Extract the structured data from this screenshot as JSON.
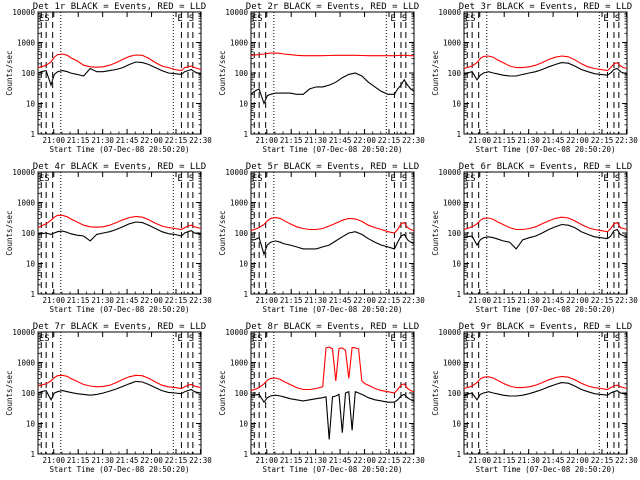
{
  "figure": {
    "background": "#ffffff",
    "events_color": "#000000",
    "lld_color": "#ff0000",
    "xtick_labels": [
      "21:00",
      "21:15",
      "21:30",
      "21:45",
      "22:00",
      "22:15",
      "22:30"
    ],
    "ytick_labels": [
      "1",
      "10",
      "100",
      "1000",
      "10000"
    ],
    "ylabel": "Counts/sec",
    "xlabel": "Start Time (07-Dec-08 20:50:20)",
    "flag_labels": [
      "ES",
      "E",
      "S"
    ]
  },
  "chart_data": [
    {
      "type": "line",
      "title": "Det 1r BLACK = Events, RED = LLD",
      "xlabel": "Start Time (07-Dec-08 20:50:20)",
      "ylabel": "Counts/sec",
      "xlim_minutes_after_2050_20": [
        0,
        100
      ],
      "ylim": [
        1,
        10000
      ],
      "yscale": "log",
      "x": [
        0,
        2,
        5,
        8,
        10,
        12,
        15,
        18,
        20,
        24,
        28,
        32,
        36,
        40,
        44,
        48,
        52,
        56,
        60,
        64,
        68,
        72,
        76,
        80,
        84,
        88,
        90,
        92,
        94,
        96,
        98,
        100
      ],
      "series": [
        {
          "name": "LLD",
          "values": [
            150,
            160,
            180,
            230,
            330,
            400,
            420,
            380,
            320,
            250,
            180,
            160,
            155,
            160,
            180,
            220,
            280,
            350,
            390,
            380,
            300,
            220,
            170,
            150,
            130,
            120,
            150,
            160,
            170,
            150,
            140,
            130
          ]
        },
        {
          "name": "Events",
          "values": [
            100,
            110,
            120,
            40,
            90,
            110,
            120,
            110,
            100,
            90,
            80,
            140,
            110,
            110,
            120,
            130,
            150,
            190,
            230,
            220,
            190,
            150,
            120,
            100,
            95,
            90,
            110,
            120,
            130,
            110,
            100,
            90
          ]
        }
      ]
    },
    {
      "type": "line",
      "title": "Det 2r BLACK = Events, RED = LLD",
      "xlabel": "Start Time (07-Dec-08 20:50:20)",
      "ylabel": "Counts/sec",
      "xlim_minutes_after_2050_20": [
        0,
        100
      ],
      "ylim": [
        1,
        10000
      ],
      "yscale": "log",
      "x": [
        0,
        2,
        5,
        8,
        10,
        12,
        15,
        18,
        20,
        24,
        28,
        32,
        36,
        40,
        44,
        48,
        52,
        56,
        60,
        64,
        68,
        72,
        76,
        80,
        84,
        88,
        90,
        92,
        94,
        96,
        98,
        100
      ],
      "series": [
        {
          "name": "LLD",
          "values": [
            380,
            390,
            400,
            420,
            440,
            450,
            450,
            440,
            420,
            400,
            380,
            370,
            370,
            370,
            370,
            375,
            380,
            380,
            380,
            380,
            375,
            370,
            370,
            370,
            370,
            370,
            375,
            380,
            380,
            375,
            370,
            370
          ]
        },
        {
          "name": "Events",
          "values": [
            20,
            25,
            30,
            10,
            18,
            20,
            22,
            22,
            22,
            22,
            20,
            20,
            30,
            35,
            35,
            40,
            50,
            70,
            90,
            100,
            80,
            50,
            35,
            25,
            20,
            20,
            30,
            40,
            60,
            40,
            30,
            25
          ]
        }
      ]
    },
    {
      "type": "line",
      "title": "Det 3r BLACK = Events, RED = LLD",
      "xlabel": "Start Time (07-Dec-08 20:50:20)",
      "ylabel": "Counts/sec",
      "xlim_minutes_after_2050_20": [
        0,
        100
      ],
      "ylim": [
        1,
        10000
      ],
      "yscale": "log",
      "x": [
        0,
        2,
        5,
        8,
        10,
        12,
        15,
        18,
        20,
        24,
        28,
        32,
        36,
        40,
        44,
        48,
        52,
        56,
        60,
        64,
        68,
        72,
        76,
        80,
        84,
        88,
        90,
        92,
        94,
        96,
        98,
        100
      ],
      "series": [
        {
          "name": "LLD",
          "values": [
            140,
            150,
            170,
            220,
            300,
            350,
            360,
            330,
            280,
            220,
            170,
            150,
            150,
            160,
            180,
            220,
            280,
            330,
            360,
            340,
            270,
            200,
            160,
            140,
            130,
            120,
            150,
            200,
            220,
            170,
            150,
            140
          ]
        },
        {
          "name": "Events",
          "values": [
            90,
            100,
            110,
            60,
            85,
            100,
            110,
            100,
            95,
            85,
            80,
            80,
            90,
            100,
            110,
            130,
            160,
            190,
            220,
            210,
            170,
            130,
            110,
            95,
            90,
            85,
            100,
            130,
            140,
            110,
            100,
            95
          ]
        }
      ]
    },
    {
      "type": "line",
      "title": "Det 4r BLACK = Events, RED = LLD",
      "xlabel": "Start Time (07-Dec-08 20:50:20)",
      "ylabel": "Counts/sec",
      "xlim_minutes_after_2050_20": [
        0,
        100
      ],
      "ylim": [
        1,
        10000
      ],
      "yscale": "log",
      "x": [
        0,
        2,
        5,
        8,
        10,
        12,
        15,
        18,
        20,
        24,
        28,
        32,
        36,
        40,
        44,
        48,
        52,
        56,
        60,
        64,
        68,
        72,
        76,
        80,
        84,
        88,
        90,
        92,
        94,
        96,
        98,
        100
      ],
      "series": [
        {
          "name": "LLD",
          "values": [
            150,
            170,
            200,
            260,
            330,
            380,
            380,
            340,
            290,
            230,
            180,
            160,
            155,
            160,
            180,
            220,
            270,
            320,
            350,
            330,
            270,
            210,
            170,
            150,
            140,
            130,
            150,
            170,
            180,
            160,
            150,
            140
          ]
        },
        {
          "name": "Events",
          "values": [
            90,
            95,
            100,
            90,
            100,
            110,
            115,
            105,
            95,
            85,
            80,
            55,
            90,
            100,
            110,
            130,
            160,
            200,
            230,
            220,
            180,
            140,
            110,
            95,
            90,
            80,
            100,
            110,
            120,
            100,
            95,
            90
          ]
        }
      ]
    },
    {
      "type": "line",
      "title": "Det 5r BLACK = Events, RED = LLD",
      "xlabel": "Start Time (07-Dec-08 20:50:20)",
      "ylabel": "Counts/sec",
      "xlim_minutes_after_2050_20": [
        0,
        100
      ],
      "ylim": [
        1,
        10000
      ],
      "yscale": "log",
      "x": [
        0,
        2,
        5,
        8,
        10,
        12,
        15,
        18,
        20,
        24,
        28,
        32,
        36,
        40,
        44,
        48,
        52,
        56,
        60,
        64,
        68,
        72,
        76,
        80,
        84,
        88,
        90,
        92,
        94,
        96,
        98,
        100
      ],
      "series": [
        {
          "name": "LLD",
          "values": [
            120,
            130,
            150,
            190,
            250,
            300,
            320,
            300,
            260,
            200,
            160,
            140,
            130,
            130,
            140,
            170,
            210,
            260,
            300,
            290,
            240,
            180,
            150,
            130,
            110,
            100,
            130,
            200,
            220,
            150,
            130,
            120
          ]
        },
        {
          "name": "Events",
          "values": [
            60,
            60,
            70,
            20,
            40,
            50,
            55,
            50,
            45,
            40,
            35,
            30,
            30,
            30,
            35,
            40,
            55,
            75,
            100,
            110,
            90,
            65,
            50,
            40,
            35,
            30,
            50,
            80,
            90,
            60,
            50,
            45
          ]
        }
      ]
    },
    {
      "type": "line",
      "title": "Det 6r BLACK = Events, RED = LLD",
      "xlabel": "Start Time (07-Dec-08 20:50:20)",
      "ylabel": "Counts/sec",
      "xlim_minutes_after_2050_20": [
        0,
        100
      ],
      "ylim": [
        1,
        10000
      ],
      "yscale": "log",
      "x": [
        0,
        2,
        5,
        8,
        10,
        12,
        15,
        18,
        20,
        24,
        28,
        32,
        36,
        40,
        44,
        48,
        52,
        56,
        60,
        64,
        68,
        72,
        76,
        80,
        84,
        88,
        90,
        92,
        94,
        96,
        98,
        100
      ],
      "series": [
        {
          "name": "LLD",
          "values": [
            130,
            140,
            160,
            200,
            260,
            300,
            310,
            280,
            240,
            190,
            150,
            130,
            130,
            140,
            160,
            200,
            250,
            300,
            330,
            310,
            250,
            190,
            150,
            130,
            120,
            110,
            140,
            200,
            220,
            150,
            140,
            130
          ]
        },
        {
          "name": "Events",
          "values": [
            70,
            75,
            80,
            40,
            60,
            70,
            75,
            70,
            65,
            55,
            50,
            30,
            60,
            70,
            80,
            100,
            130,
            160,
            190,
            180,
            150,
            110,
            90,
            75,
            70,
            65,
            80,
            120,
            130,
            90,
            80,
            75
          ]
        }
      ]
    },
    {
      "type": "line",
      "title": "Det 7r BLACK = Events, RED = LLD",
      "xlabel": "Start Time (07-Dec-08 20:50:20)",
      "ylabel": "Counts/sec",
      "xlim_minutes_after_2050_20": [
        0,
        100
      ],
      "ylim": [
        1,
        10000
      ],
      "yscale": "log",
      "x": [
        0,
        2,
        5,
        8,
        10,
        12,
        15,
        18,
        20,
        24,
        28,
        32,
        36,
        40,
        44,
        48,
        52,
        56,
        60,
        64,
        68,
        72,
        76,
        80,
        84,
        88,
        90,
        92,
        94,
        96,
        98,
        100
      ],
      "series": [
        {
          "name": "LLD",
          "values": [
            170,
            180,
            200,
            250,
            320,
            370,
            380,
            350,
            300,
            240,
            190,
            170,
            160,
            165,
            180,
            220,
            280,
            340,
            380,
            370,
            300,
            230,
            180,
            160,
            150,
            140,
            160,
            180,
            190,
            170,
            160,
            150
          ]
        },
        {
          "name": "Events",
          "values": [
            100,
            110,
            120,
            60,
            100,
            110,
            120,
            110,
            105,
            95,
            90,
            85,
            90,
            100,
            115,
            135,
            165,
            200,
            240,
            230,
            190,
            150,
            120,
            105,
            100,
            95,
            110,
            120,
            130,
            110,
            105,
            100
          ]
        }
      ]
    },
    {
      "type": "line",
      "title": "Det 8r BLACK = Events, RED = LLD",
      "xlabel": "Start Time (07-Dec-08 20:50:20)",
      "ylabel": "Counts/sec",
      "xlim_minutes_after_2050_20": [
        0,
        100
      ],
      "ylim": [
        1,
        10000
      ],
      "yscale": "log",
      "x": [
        0,
        2,
        5,
        8,
        10,
        12,
        15,
        18,
        20,
        24,
        28,
        32,
        36,
        40,
        44,
        46,
        48,
        50,
        52,
        54,
        56,
        58,
        60,
        62,
        64,
        66,
        68,
        70,
        72,
        76,
        80,
        84,
        88,
        90,
        92,
        94,
        96,
        98,
        100
      ],
      "series": [
        {
          "name": "LLD",
          "values": [
            120,
            130,
            150,
            200,
            260,
            300,
            310,
            280,
            240,
            190,
            150,
            130,
            130,
            140,
            160,
            3000,
            3200,
            2800,
            250,
            2900,
            3000,
            2500,
            300,
            3100,
            3000,
            2800,
            250,
            200,
            180,
            140,
            120,
            110,
            100,
            130,
            180,
            200,
            140,
            120,
            110
          ]
        },
        {
          "name": "Events",
          "values": [
            80,
            85,
            90,
            50,
            70,
            80,
            85,
            80,
            75,
            65,
            60,
            55,
            60,
            65,
            70,
            75,
            3,
            75,
            80,
            90,
            5,
            100,
            110,
            6,
            110,
            100,
            90,
            80,
            70,
            60,
            55,
            50,
            50,
            60,
            80,
            90,
            70,
            60,
            55
          ]
        }
      ]
    },
    {
      "type": "line",
      "title": "Det 9r BLACK = Events, RED = LLD",
      "xlabel": "Start Time (07-Dec-08 20:50:20)",
      "ylabel": "Counts/sec",
      "xlim_minutes_after_2050_20": [
        0,
        100
      ],
      "ylim": [
        1,
        10000
      ],
      "yscale": "log",
      "x": [
        0,
        2,
        5,
        8,
        10,
        12,
        15,
        18,
        20,
        24,
        28,
        32,
        36,
        40,
        44,
        48,
        52,
        56,
        60,
        64,
        68,
        72,
        76,
        80,
        84,
        88,
        90,
        92,
        94,
        96,
        98,
        100
      ],
      "series": [
        {
          "name": "LLD",
          "values": [
            140,
            150,
            170,
            220,
            290,
            330,
            340,
            310,
            270,
            210,
            170,
            150,
            150,
            160,
            180,
            220,
            270,
            320,
            350,
            330,
            270,
            210,
            170,
            150,
            140,
            130,
            150,
            170,
            180,
            160,
            150,
            140
          ]
        },
        {
          "name": "Events",
          "values": [
            80,
            90,
            100,
            60,
            90,
            100,
            110,
            100,
            95,
            85,
            80,
            80,
            85,
            95,
            110,
            130,
            160,
            190,
            220,
            210,
            170,
            130,
            110,
            95,
            90,
            85,
            100,
            110,
            120,
            100,
            95,
            90
          ]
        }
      ]
    }
  ]
}
